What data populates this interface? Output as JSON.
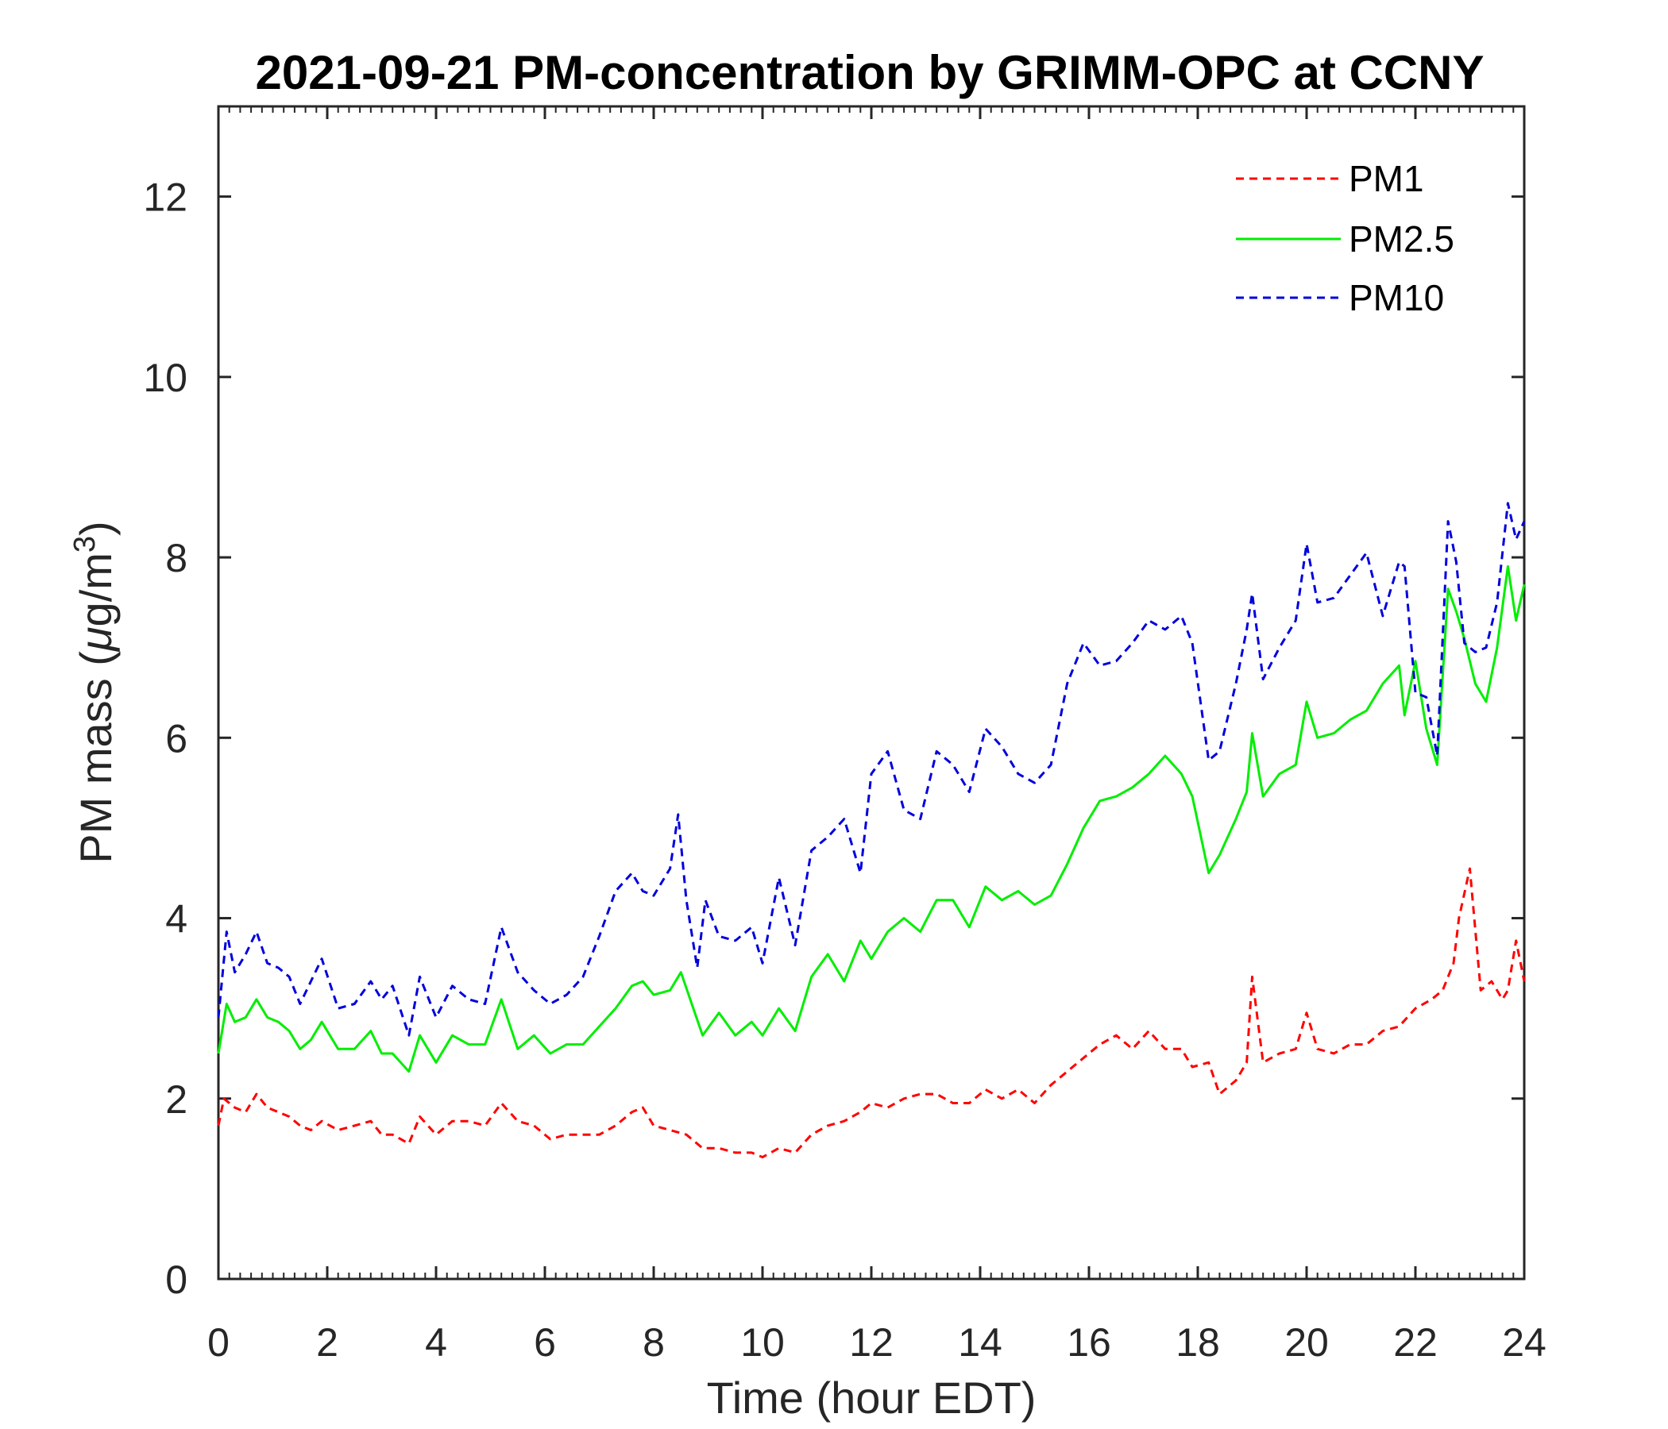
{
  "chart_data": {
    "type": "line",
    "title": "2021-09-21 PM-concentration by GRIMM-OPC at CCNY",
    "xlabel": "Time (hour EDT)",
    "ylabel_prefix": "PM mass (",
    "ylabel_mu": "μ",
    "ylabel_unit": "g/m",
    "ylabel_sup": "3",
    "ylabel_suffix": ")",
    "xlim": [
      0,
      24
    ],
    "ylim": [
      0,
      13
    ],
    "xticks": [
      0,
      2,
      4,
      6,
      8,
      10,
      12,
      14,
      16,
      18,
      20,
      22,
      24
    ],
    "yticks": [
      0,
      2,
      4,
      6,
      8,
      10,
      12
    ],
    "grid": false,
    "legend_position": "top-right",
    "series": [
      {
        "name": "PM1",
        "color": "#ff0000",
        "style": "dashed",
        "x": [
          0,
          0.1,
          0.3,
          0.5,
          0.7,
          0.9,
          1.1,
          1.3,
          1.5,
          1.7,
          1.9,
          2.2,
          2.5,
          2.8,
          3.0,
          3.2,
          3.5,
          3.7,
          4.0,
          4.3,
          4.6,
          4.9,
          5.2,
          5.5,
          5.8,
          6.1,
          6.4,
          6.7,
          7.0,
          7.3,
          7.6,
          7.8,
          8.0,
          8.3,
          8.6,
          8.9,
          9.2,
          9.5,
          9.8,
          10.0,
          10.3,
          10.6,
          10.9,
          11.2,
          11.5,
          11.8,
          12.0,
          12.3,
          12.6,
          12.9,
          13.2,
          13.5,
          13.8,
          14.1,
          14.4,
          14.7,
          15.0,
          15.3,
          15.6,
          15.9,
          16.2,
          16.5,
          16.8,
          17.1,
          17.4,
          17.7,
          17.9,
          18.2,
          18.4,
          18.7,
          18.9,
          19.0,
          19.2,
          19.5,
          19.8,
          20.0,
          20.2,
          20.5,
          20.8,
          21.1,
          21.4,
          21.7,
          22.0,
          22.3,
          22.5,
          22.7,
          22.8,
          23.0,
          23.2,
          23.4,
          23.6,
          23.7,
          23.85,
          24.0
        ],
        "y": [
          1.7,
          2.0,
          1.9,
          1.85,
          2.05,
          1.9,
          1.85,
          1.8,
          1.7,
          1.65,
          1.75,
          1.65,
          1.7,
          1.75,
          1.6,
          1.6,
          1.5,
          1.8,
          1.6,
          1.75,
          1.75,
          1.7,
          1.95,
          1.75,
          1.7,
          1.55,
          1.6,
          1.6,
          1.6,
          1.7,
          1.85,
          1.9,
          1.7,
          1.65,
          1.6,
          1.45,
          1.45,
          1.4,
          1.4,
          1.35,
          1.45,
          1.4,
          1.6,
          1.7,
          1.75,
          1.85,
          1.95,
          1.9,
          2.0,
          2.05,
          2.05,
          1.95,
          1.95,
          2.1,
          2.0,
          2.1,
          1.95,
          2.15,
          2.3,
          2.45,
          2.6,
          2.7,
          2.55,
          2.75,
          2.55,
          2.55,
          2.35,
          2.4,
          2.05,
          2.2,
          2.4,
          3.35,
          2.4,
          2.5,
          2.55,
          2.95,
          2.55,
          2.5,
          2.6,
          2.6,
          2.75,
          2.8,
          3.0,
          3.1,
          3.2,
          3.5,
          4.0,
          4.55,
          3.2,
          3.3,
          3.1,
          3.2,
          3.75,
          3.3
        ]
      },
      {
        "name": "PM2.5",
        "color": "#00ee00",
        "style": "solid",
        "x": [
          0,
          0.15,
          0.3,
          0.5,
          0.7,
          0.9,
          1.1,
          1.3,
          1.5,
          1.7,
          1.9,
          2.2,
          2.5,
          2.8,
          3.0,
          3.2,
          3.5,
          3.7,
          4.0,
          4.3,
          4.6,
          4.9,
          5.2,
          5.5,
          5.8,
          6.1,
          6.4,
          6.7,
          7.0,
          7.3,
          7.6,
          7.8,
          8.0,
          8.3,
          8.5,
          8.7,
          8.9,
          9.2,
          9.5,
          9.8,
          10.0,
          10.3,
          10.6,
          10.9,
          11.2,
          11.5,
          11.8,
          12.0,
          12.3,
          12.6,
          12.9,
          13.2,
          13.5,
          13.8,
          14.1,
          14.4,
          14.7,
          15.0,
          15.3,
          15.6,
          15.9,
          16.2,
          16.5,
          16.8,
          17.1,
          17.4,
          17.7,
          17.9,
          18.2,
          18.4,
          18.7,
          18.9,
          19.0,
          19.2,
          19.5,
          19.8,
          20.0,
          20.2,
          20.5,
          20.8,
          21.1,
          21.4,
          21.7,
          21.8,
          22.0,
          22.2,
          22.4,
          22.6,
          22.75,
          22.9,
          23.1,
          23.3,
          23.5,
          23.7,
          23.85,
          24.0
        ],
        "y": [
          2.5,
          3.05,
          2.85,
          2.9,
          3.1,
          2.9,
          2.85,
          2.75,
          2.55,
          2.65,
          2.85,
          2.55,
          2.55,
          2.75,
          2.5,
          2.5,
          2.3,
          2.7,
          2.4,
          2.7,
          2.6,
          2.6,
          3.1,
          2.55,
          2.7,
          2.5,
          2.6,
          2.6,
          2.8,
          3.0,
          3.25,
          3.3,
          3.15,
          3.2,
          3.4,
          3.05,
          2.7,
          2.95,
          2.7,
          2.85,
          2.7,
          3.0,
          2.75,
          3.35,
          3.6,
          3.3,
          3.75,
          3.55,
          3.85,
          4.0,
          3.85,
          4.2,
          4.2,
          3.9,
          4.35,
          4.2,
          4.3,
          4.15,
          4.25,
          4.6,
          5.0,
          5.3,
          5.35,
          5.45,
          5.6,
          5.8,
          5.6,
          5.35,
          4.5,
          4.7,
          5.1,
          5.4,
          6.05,
          5.35,
          5.6,
          5.7,
          6.4,
          6.0,
          6.05,
          6.2,
          6.3,
          6.6,
          6.8,
          6.25,
          6.85,
          6.1,
          5.7,
          7.65,
          7.4,
          7.1,
          6.6,
          6.4,
          7.0,
          7.9,
          7.3,
          7.7
        ]
      },
      {
        "name": "PM10",
        "color": "#0000dd",
        "style": "dashed",
        "x": [
          0,
          0.15,
          0.3,
          0.5,
          0.7,
          0.9,
          1.1,
          1.3,
          1.5,
          1.7,
          1.9,
          2.2,
          2.5,
          2.8,
          3.0,
          3.2,
          3.5,
          3.7,
          4.0,
          4.3,
          4.6,
          4.9,
          5.2,
          5.5,
          5.8,
          6.1,
          6.4,
          6.7,
          7.0,
          7.3,
          7.6,
          7.8,
          8.0,
          8.3,
          8.45,
          8.6,
          8.8,
          8.95,
          9.2,
          9.5,
          9.8,
          10.0,
          10.3,
          10.6,
          10.9,
          11.2,
          11.5,
          11.8,
          12.0,
          12.3,
          12.6,
          12.9,
          13.2,
          13.5,
          13.8,
          14.1,
          14.4,
          14.7,
          15.0,
          15.3,
          15.6,
          15.9,
          16.2,
          16.5,
          16.8,
          17.1,
          17.4,
          17.7,
          17.9,
          18.2,
          18.4,
          18.7,
          18.9,
          19.0,
          19.2,
          19.5,
          19.8,
          20.0,
          20.2,
          20.5,
          20.8,
          21.1,
          21.4,
          21.7,
          21.8,
          22.0,
          22.2,
          22.4,
          22.6,
          22.75,
          22.9,
          23.1,
          23.3,
          23.5,
          23.7,
          23.85,
          24.0
        ],
        "y": [
          2.9,
          3.85,
          3.4,
          3.6,
          3.85,
          3.5,
          3.45,
          3.35,
          3.05,
          3.3,
          3.55,
          3.0,
          3.05,
          3.3,
          3.1,
          3.25,
          2.7,
          3.35,
          2.9,
          3.25,
          3.1,
          3.05,
          3.9,
          3.4,
          3.2,
          3.05,
          3.15,
          3.35,
          3.8,
          4.3,
          4.5,
          4.3,
          4.25,
          4.55,
          5.15,
          4.2,
          3.45,
          4.2,
          3.8,
          3.75,
          3.9,
          3.5,
          4.45,
          3.7,
          4.75,
          4.9,
          5.1,
          4.5,
          5.6,
          5.85,
          5.2,
          5.1,
          5.85,
          5.7,
          5.4,
          6.1,
          5.9,
          5.6,
          5.5,
          5.7,
          6.6,
          7.05,
          6.8,
          6.85,
          7.05,
          7.3,
          7.2,
          7.35,
          7.05,
          5.75,
          5.85,
          6.6,
          7.2,
          7.6,
          6.65,
          7.0,
          7.3,
          8.15,
          7.5,
          7.55,
          7.8,
          8.05,
          7.35,
          7.95,
          7.9,
          6.5,
          6.45,
          5.8,
          8.4,
          7.95,
          7.05,
          6.95,
          7.0,
          7.5,
          8.6,
          8.2,
          8.4
        ]
      }
    ]
  }
}
